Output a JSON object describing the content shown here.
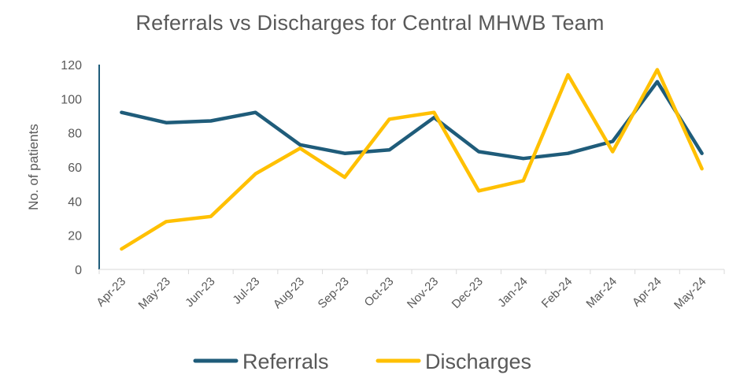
{
  "chart_data": {
    "type": "line",
    "title": "Referrals vs Discharges for Central MHWB Team",
    "xlabel": "",
    "ylabel": "No. of patients",
    "ylim": [
      0,
      120
    ],
    "yticks": [
      0,
      20,
      40,
      60,
      80,
      100,
      120
    ],
    "categories": [
      "Apr-23",
      "May-23",
      "Jun-23",
      "Jul-23",
      "Aug-23",
      "Sep-23",
      "Oct-23",
      "Nov-23",
      "Dec-23",
      "Jan-24",
      "Feb-24",
      "Mar-24",
      "Apr-24",
      "May-24"
    ],
    "series": [
      {
        "name": "Referrals",
        "color": "#1F5C7A",
        "values": [
          92,
          86,
          87,
          92,
          73,
          68,
          70,
          89,
          69,
          65,
          68,
          75,
          110,
          68
        ]
      },
      {
        "name": "Discharges",
        "color": "#FFC000",
        "values": [
          12,
          28,
          31,
          56,
          71,
          54,
          88,
          92,
          46,
          52,
          114,
          69,
          117,
          59
        ]
      }
    ],
    "grid": false,
    "legend": "bottom"
  }
}
